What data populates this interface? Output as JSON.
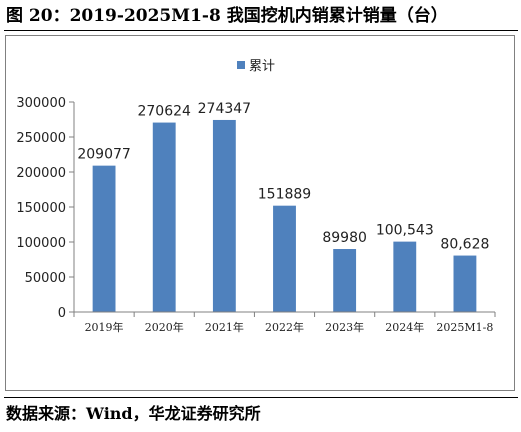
{
  "figure": {
    "title": "图 20：2019-2025M1-8 我国挖机内销累计销量（台）",
    "source": "数据来源：Wind，华龙证券研究所"
  },
  "chart_data": {
    "type": "bar",
    "categories": [
      "2019年",
      "2020年",
      "2021年",
      "2022年",
      "2023年",
      "2024年",
      "2025M1-8"
    ],
    "series": [
      {
        "name": "累计",
        "values": [
          209077,
          270624,
          274347,
          151889,
          89980,
          100543,
          80628
        ],
        "labels": [
          "209077",
          "270624",
          "274347",
          "151889",
          "89980",
          "100,543",
          "80,628"
        ]
      }
    ],
    "ylim": [
      0,
      300000
    ],
    "yticks": [
      "0",
      "50000",
      "100000",
      "150000",
      "200000",
      "250000",
      "300000"
    ],
    "ytick_values": [
      0,
      50000,
      100000,
      150000,
      200000,
      250000,
      300000
    ],
    "legend_position": "top",
    "grid": false,
    "colors": {
      "bar": "#4f81bd",
      "axis": "#808080"
    }
  }
}
